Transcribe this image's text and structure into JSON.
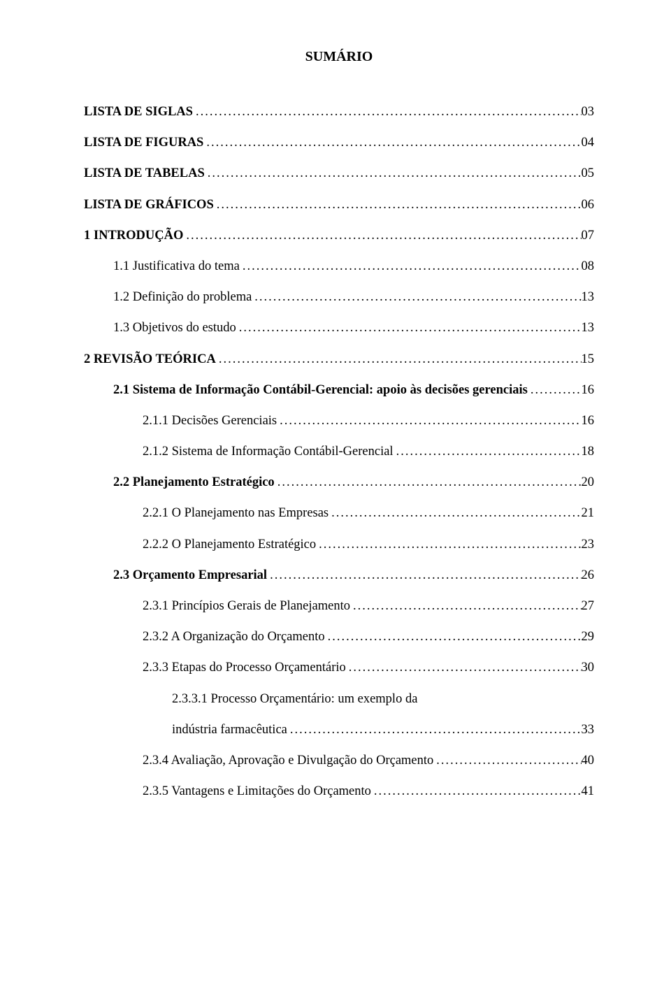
{
  "title": "SUMÁRIO",
  "entries": [
    {
      "label": "LISTA DE SIGLAS",
      "page": "03",
      "bold": true,
      "indent": 0
    },
    {
      "label": "LISTA DE FIGURAS",
      "page": "04",
      "bold": true,
      "indent": 0
    },
    {
      "label": "LISTA DE TABELAS",
      "page": "05",
      "bold": true,
      "indent": 0
    },
    {
      "label": "LISTA DE GRÁFICOS",
      "page": "06",
      "bold": true,
      "indent": 0
    },
    {
      "label": "1   INTRODUÇÃO",
      "page": "07",
      "bold": true,
      "indent": 0
    },
    {
      "label": "1.1 Justificativa do tema",
      "page": "08",
      "bold": false,
      "indent": 1
    },
    {
      "label": "1.2 Definição do problema",
      "page": "13",
      "bold": false,
      "indent": 1
    },
    {
      "label": "1.3 Objetivos do estudo",
      "page": "13",
      "bold": false,
      "indent": 1
    },
    {
      "label": "2   REVISÃO TEÓRICA",
      "page": "15",
      "bold": true,
      "indent": 0
    },
    {
      "label": "2.1 Sistema de Informação Contábil-Gerencial: apoio às decisões gerenciais",
      "page": "16",
      "bold": true,
      "indent": 1
    },
    {
      "label": "2.1.1   Decisões Gerenciais",
      "page": "16",
      "bold": false,
      "indent": 2
    },
    {
      "label": "2.1.2   Sistema de Informação Contábil-Gerencial",
      "page": "18",
      "bold": false,
      "indent": 2
    },
    {
      "label": "2.2 Planejamento Estratégico",
      "page": "20",
      "bold": true,
      "indent": 1
    },
    {
      "label": "2.2.1   O Planejamento nas Empresas",
      "page": "21",
      "bold": false,
      "indent": 2
    },
    {
      "label": "2.2.2   O Planejamento Estratégico",
      "page": "23",
      "bold": false,
      "indent": 2
    },
    {
      "label": "2.3 Orçamento Empresarial",
      "page": "26",
      "bold": true,
      "indent": 1
    },
    {
      "label": "2.3.1   Princípios Gerais de Planejamento",
      "page": "27",
      "bold": false,
      "indent": 2
    },
    {
      "label": "2.3.2   A Organização do Orçamento",
      "page": "29",
      "bold": false,
      "indent": 2
    },
    {
      "label": "2.3.3   Etapas do Processo Orçamentário",
      "page": "30",
      "bold": false,
      "indent": 2
    },
    {
      "label_first": "2.3.3.1 Processo Orçamentário: um exemplo da",
      "label_second": "indústria farmacêutica",
      "page": "33",
      "bold": false,
      "indent": 3,
      "multiline": true
    },
    {
      "label": "2.3.4   Avaliação, Aprovação e Divulgação do Orçamento",
      "page": "40",
      "bold": false,
      "indent": 2
    },
    {
      "label": "2.3.5   Vantagens e Limitações do Orçamento",
      "page": "41",
      "bold": false,
      "indent": 2
    }
  ]
}
